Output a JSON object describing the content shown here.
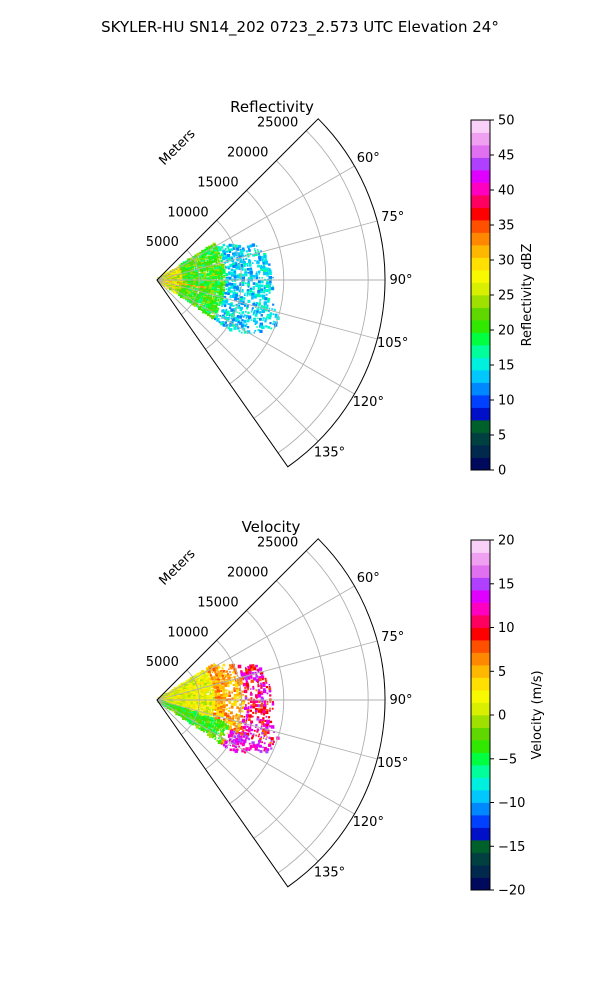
{
  "figure": {
    "title": "SKYLER-HU  SN14_202  0723_2.573 UTC Elevation 24°"
  },
  "chart_data": [
    {
      "type": "heatmap",
      "projection": "polar-sector",
      "title": "Reflectivity",
      "radial_axis_label": "Meters",
      "radial_ticks": [
        5000,
        10000,
        15000,
        20000,
        25000
      ],
      "radial_tick_labels": [
        "5000",
        "10000",
        "15000",
        "20000",
        "25000"
      ],
      "radial_max": 27000,
      "theta_range_deg": [
        45,
        145
      ],
      "theta_ticks": [
        60,
        75,
        90,
        105,
        120,
        135
      ],
      "theta_tick_labels": [
        "60°",
        "75°",
        "90°",
        "105°",
        "120°",
        "135°"
      ],
      "grid": true,
      "colorbar": {
        "label": "Reflectivity dBZ",
        "range": [
          0,
          50
        ],
        "ticks": [
          0,
          5,
          10,
          15,
          20,
          25,
          30,
          35,
          40,
          45,
          50
        ],
        "tick_labels": [
          "0",
          "5",
          "10",
          "15",
          "20",
          "25",
          "30",
          "35",
          "40",
          "45",
          "50"
        ],
        "colors": [
          "#000a5c",
          "#00294d",
          "#004040",
          "#00602b",
          "#0010c8",
          "#0040ff",
          "#0088ff",
          "#00c8ff",
          "#00f0e0",
          "#00ff9a",
          "#00ff40",
          "#30e800",
          "#60d800",
          "#a0e000",
          "#d8f000",
          "#f8f800",
          "#ffe000",
          "#ffb800",
          "#ff8800",
          "#ff5000",
          "#ff0000",
          "#ff0060",
          "#ff00c0",
          "#e000ff",
          "#b040ff",
          "#e070f0",
          "#f0a0f0",
          "#f8d0f8"
        ]
      },
      "field_summary": {
        "range_extent_m": [
          0,
          17000
        ],
        "azimuth_extent_deg": [
          58,
          124
        ],
        "value_range": [
          10,
          33
        ],
        "dominant_values": [
          14,
          22
        ]
      }
    },
    {
      "type": "heatmap",
      "projection": "polar-sector",
      "title": "Velocity",
      "radial_axis_label": "Meters",
      "radial_ticks": [
        5000,
        10000,
        15000,
        20000,
        25000
      ],
      "radial_tick_labels": [
        "5000",
        "10000",
        "15000",
        "20000",
        "25000"
      ],
      "radial_max": 27000,
      "theta_range_deg": [
        45,
        145
      ],
      "theta_ticks": [
        60,
        75,
        90,
        105,
        120,
        135
      ],
      "theta_tick_labels": [
        "60°",
        "75°",
        "90°",
        "105°",
        "120°",
        "135°"
      ],
      "grid": true,
      "colorbar": {
        "label": "Velocity (m/s)",
        "range": [
          -20,
          20
        ],
        "ticks": [
          -20,
          -15,
          -10,
          -5,
          0,
          5,
          10,
          15,
          20
        ],
        "tick_labels": [
          "−20",
          "−15",
          "−10",
          "−5",
          "0",
          "5",
          "10",
          "15",
          "20"
        ],
        "colors": [
          "#000a5c",
          "#00294d",
          "#004040",
          "#00602b",
          "#0010c8",
          "#0040ff",
          "#0088ff",
          "#00c8ff",
          "#00f0e0",
          "#00ff9a",
          "#00ff40",
          "#30e800",
          "#60d800",
          "#a0e000",
          "#d8f000",
          "#f8f800",
          "#ffe000",
          "#ffb800",
          "#ff8800",
          "#ff5000",
          "#ff0000",
          "#ff0060",
          "#ff00c0",
          "#e000ff",
          "#b040ff",
          "#e070f0",
          "#f0a0f0",
          "#f8d0f8"
        ]
      },
      "field_summary": {
        "range_extent_m": [
          0,
          17000
        ],
        "azimuth_extent_deg": [
          58,
          124
        ],
        "value_range": [
          -9,
          15
        ],
        "dominant_values": [
          0,
          6
        ]
      }
    }
  ]
}
